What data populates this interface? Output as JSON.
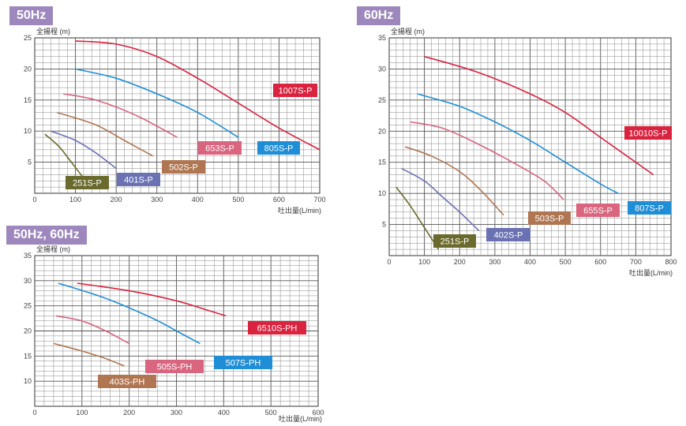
{
  "panels": [
    {
      "tag": "50Hz"
    },
    {
      "tag": "60Hz"
    },
    {
      "tag": "50Hz, 60Hz"
    }
  ],
  "chart_data": [
    {
      "type": "line",
      "panel": "50Hz",
      "ylabel": "全揚程 (m)",
      "xlabel": "吐出量(L/min)",
      "xlim": [
        0,
        700
      ],
      "ylim": [
        0,
        25
      ],
      "xticks": [
        0,
        100,
        200,
        300,
        400,
        500,
        600,
        700
      ],
      "yticks": [
        5,
        10,
        15,
        20,
        25
      ],
      "x_minor": 20,
      "y_minor": 1,
      "grid": true,
      "series": [
        {
          "name": "1007S-P",
          "color": "#d9233f",
          "points": [
            [
              100,
              24.5
            ],
            [
              200,
              24
            ],
            [
              300,
              22
            ],
            [
              400,
              18.5
            ],
            [
              500,
              14.5
            ],
            [
              600,
              10.5
            ],
            [
              700,
              7
            ]
          ]
        },
        {
          "name": "805S-P",
          "color": "#1f8ed6",
          "points": [
            [
              100,
              20
            ],
            [
              200,
              18.5
            ],
            [
              300,
              16
            ],
            [
              400,
              13
            ],
            [
              500,
              9
            ]
          ]
        },
        {
          "name": "653S-P",
          "color": "#d9657f",
          "points": [
            [
              70,
              16
            ],
            [
              150,
              15
            ],
            [
              250,
              12.5
            ],
            [
              350,
              9
            ]
          ]
        },
        {
          "name": "502S-P",
          "color": "#b07652",
          "points": [
            [
              55,
              13
            ],
            [
              150,
              11
            ],
            [
              220,
              8.5
            ],
            [
              290,
              6
            ]
          ]
        },
        {
          "name": "401S-P",
          "color": "#6a72b3",
          "points": [
            [
              40,
              10
            ],
            [
              100,
              8.5
            ],
            [
              150,
              6.5
            ],
            [
              200,
              4
            ]
          ]
        },
        {
          "name": "251S-P",
          "color": "#6a6a2d",
          "points": [
            [
              25,
              9.5
            ],
            [
              60,
              7.5
            ],
            [
              90,
              5
            ],
            [
              125,
              2
            ]
          ]
        }
      ]
    },
    {
      "type": "line",
      "panel": "60Hz",
      "ylabel": "全揚程 (m)",
      "xlabel": "吐出量(L/min)",
      "xlim": [
        0,
        800
      ],
      "ylim": [
        0,
        35
      ],
      "xticks": [
        0,
        100,
        200,
        300,
        400,
        500,
        600,
        700,
        800
      ],
      "yticks": [
        5,
        10,
        15,
        20,
        25,
        30,
        35
      ],
      "x_minor": 20,
      "y_minor": 1,
      "grid": true,
      "series": [
        {
          "name": "10010S-P",
          "color": "#d9233f",
          "points": [
            [
              100,
              32
            ],
            [
              250,
              29.5
            ],
            [
              400,
              26
            ],
            [
              500,
              23
            ],
            [
              600,
              19
            ],
            [
              700,
              15
            ],
            [
              750,
              13
            ]
          ]
        },
        {
          "name": "807S-P",
          "color": "#1f8ed6",
          "points": [
            [
              80,
              26
            ],
            [
              200,
              24
            ],
            [
              300,
              21.5
            ],
            [
              400,
              18.5
            ],
            [
              500,
              15
            ],
            [
              600,
              11.5
            ],
            [
              650,
              10
            ]
          ]
        },
        {
          "name": "655S-P",
          "color": "#d9657f",
          "points": [
            [
              60,
              21.5
            ],
            [
              150,
              20.5
            ],
            [
              250,
              18
            ],
            [
              350,
              15
            ],
            [
              440,
              12
            ],
            [
              495,
              9
            ]
          ]
        },
        {
          "name": "503S-P",
          "color": "#b07652",
          "points": [
            [
              45,
              17.5
            ],
            [
              120,
              16
            ],
            [
              200,
              13.5
            ],
            [
              260,
              10.5
            ],
            [
              325,
              6.5
            ]
          ]
        },
        {
          "name": "402S-P",
          "color": "#6a72b3",
          "points": [
            [
              35,
              14
            ],
            [
              100,
              12
            ],
            [
              150,
              9.5
            ],
            [
              200,
              7
            ],
            [
              255,
              4
            ]
          ]
        },
        {
          "name": "251S-P",
          "color": "#6a6a2d",
          "points": [
            [
              20,
              11
            ],
            [
              60,
              8
            ],
            [
              100,
              4.5
            ],
            [
              140,
              1
            ]
          ]
        }
      ]
    },
    {
      "type": "line",
      "panel": "50Hz, 60Hz",
      "ylabel": "全揚程 (m)",
      "xlabel": "吐出量(L/min)",
      "xlim": [
        0,
        600
      ],
      "ylim": [
        5,
        35
      ],
      "xticks": [
        0,
        100,
        200,
        300,
        400,
        500,
        600
      ],
      "yticks": [
        10,
        15,
        20,
        25,
        30,
        35
      ],
      "x_minor": 20,
      "y_minor": 1,
      "grid": true,
      "series": [
        {
          "name": "6510S-PH",
          "color": "#d9233f",
          "points": [
            [
              90,
              29.5
            ],
            [
              200,
              28
            ],
            [
              300,
              26
            ],
            [
              370,
              24
            ],
            [
              405,
              23
            ]
          ]
        },
        {
          "name": "507S-PH",
          "color": "#1f8ed6",
          "points": [
            [
              50,
              29.5
            ],
            [
              150,
              26.5
            ],
            [
              250,
              22.5
            ],
            [
              300,
              20
            ],
            [
              350,
              17.5
            ]
          ]
        },
        {
          "name": "505S-PH",
          "color": "#d9657f",
          "points": [
            [
              45,
              23
            ],
            [
              100,
              22
            ],
            [
              150,
              20
            ],
            [
              200,
              17.5
            ]
          ]
        },
        {
          "name": "403S-PH",
          "color": "#b07652",
          "points": [
            [
              40,
              17.5
            ],
            [
              100,
              16
            ],
            [
              150,
              14.5
            ],
            [
              190,
              13
            ]
          ]
        }
      ]
    }
  ]
}
